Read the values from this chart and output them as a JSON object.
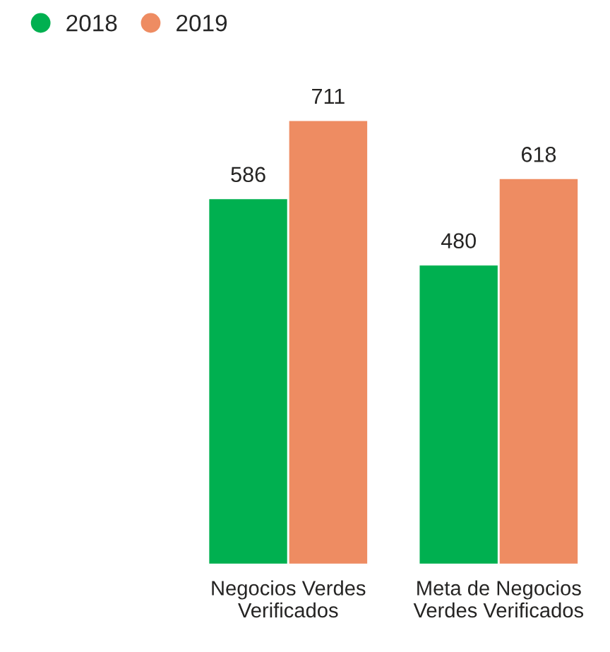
{
  "chart_data": {
    "type": "bar",
    "categories": [
      "Negocios Verdes\nVerificados",
      "Meta de Negocios\nVerdes Verificados"
    ],
    "series": [
      {
        "name": "2018",
        "color": "#00b050",
        "values": [
          586,
          480
        ]
      },
      {
        "name": "2019",
        "color": "#ee8c62",
        "values": [
          711,
          618
        ]
      }
    ],
    "data_labels": true,
    "legend": "top left",
    "grid": false
  }
}
